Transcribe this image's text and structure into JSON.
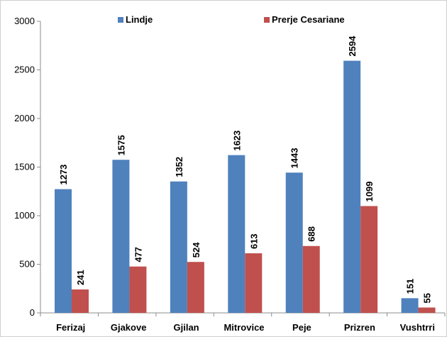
{
  "chart_data": {
    "type": "bar",
    "title": "",
    "xlabel": "",
    "ylabel": "",
    "categories": [
      "Ferizaj",
      "Gjakove",
      "Gjilan",
      "Mitrovice",
      "Peje",
      "Prizren",
      "Vushtrri"
    ],
    "series": [
      {
        "name": "Lindje",
        "color": "#4F81BD",
        "values": [
          1273,
          1575,
          1352,
          1623,
          1443,
          2594,
          151
        ]
      },
      {
        "name": "Prerje Cesariane",
        "color": "#C0504D",
        "values": [
          241,
          477,
          524,
          613,
          688,
          1099,
          55
        ]
      }
    ],
    "ylim": [
      0,
      3000
    ],
    "yticks": [
      0,
      500,
      1000,
      1500,
      2000,
      2500,
      3000
    ],
    "grid": false,
    "legend_position": "top"
  }
}
